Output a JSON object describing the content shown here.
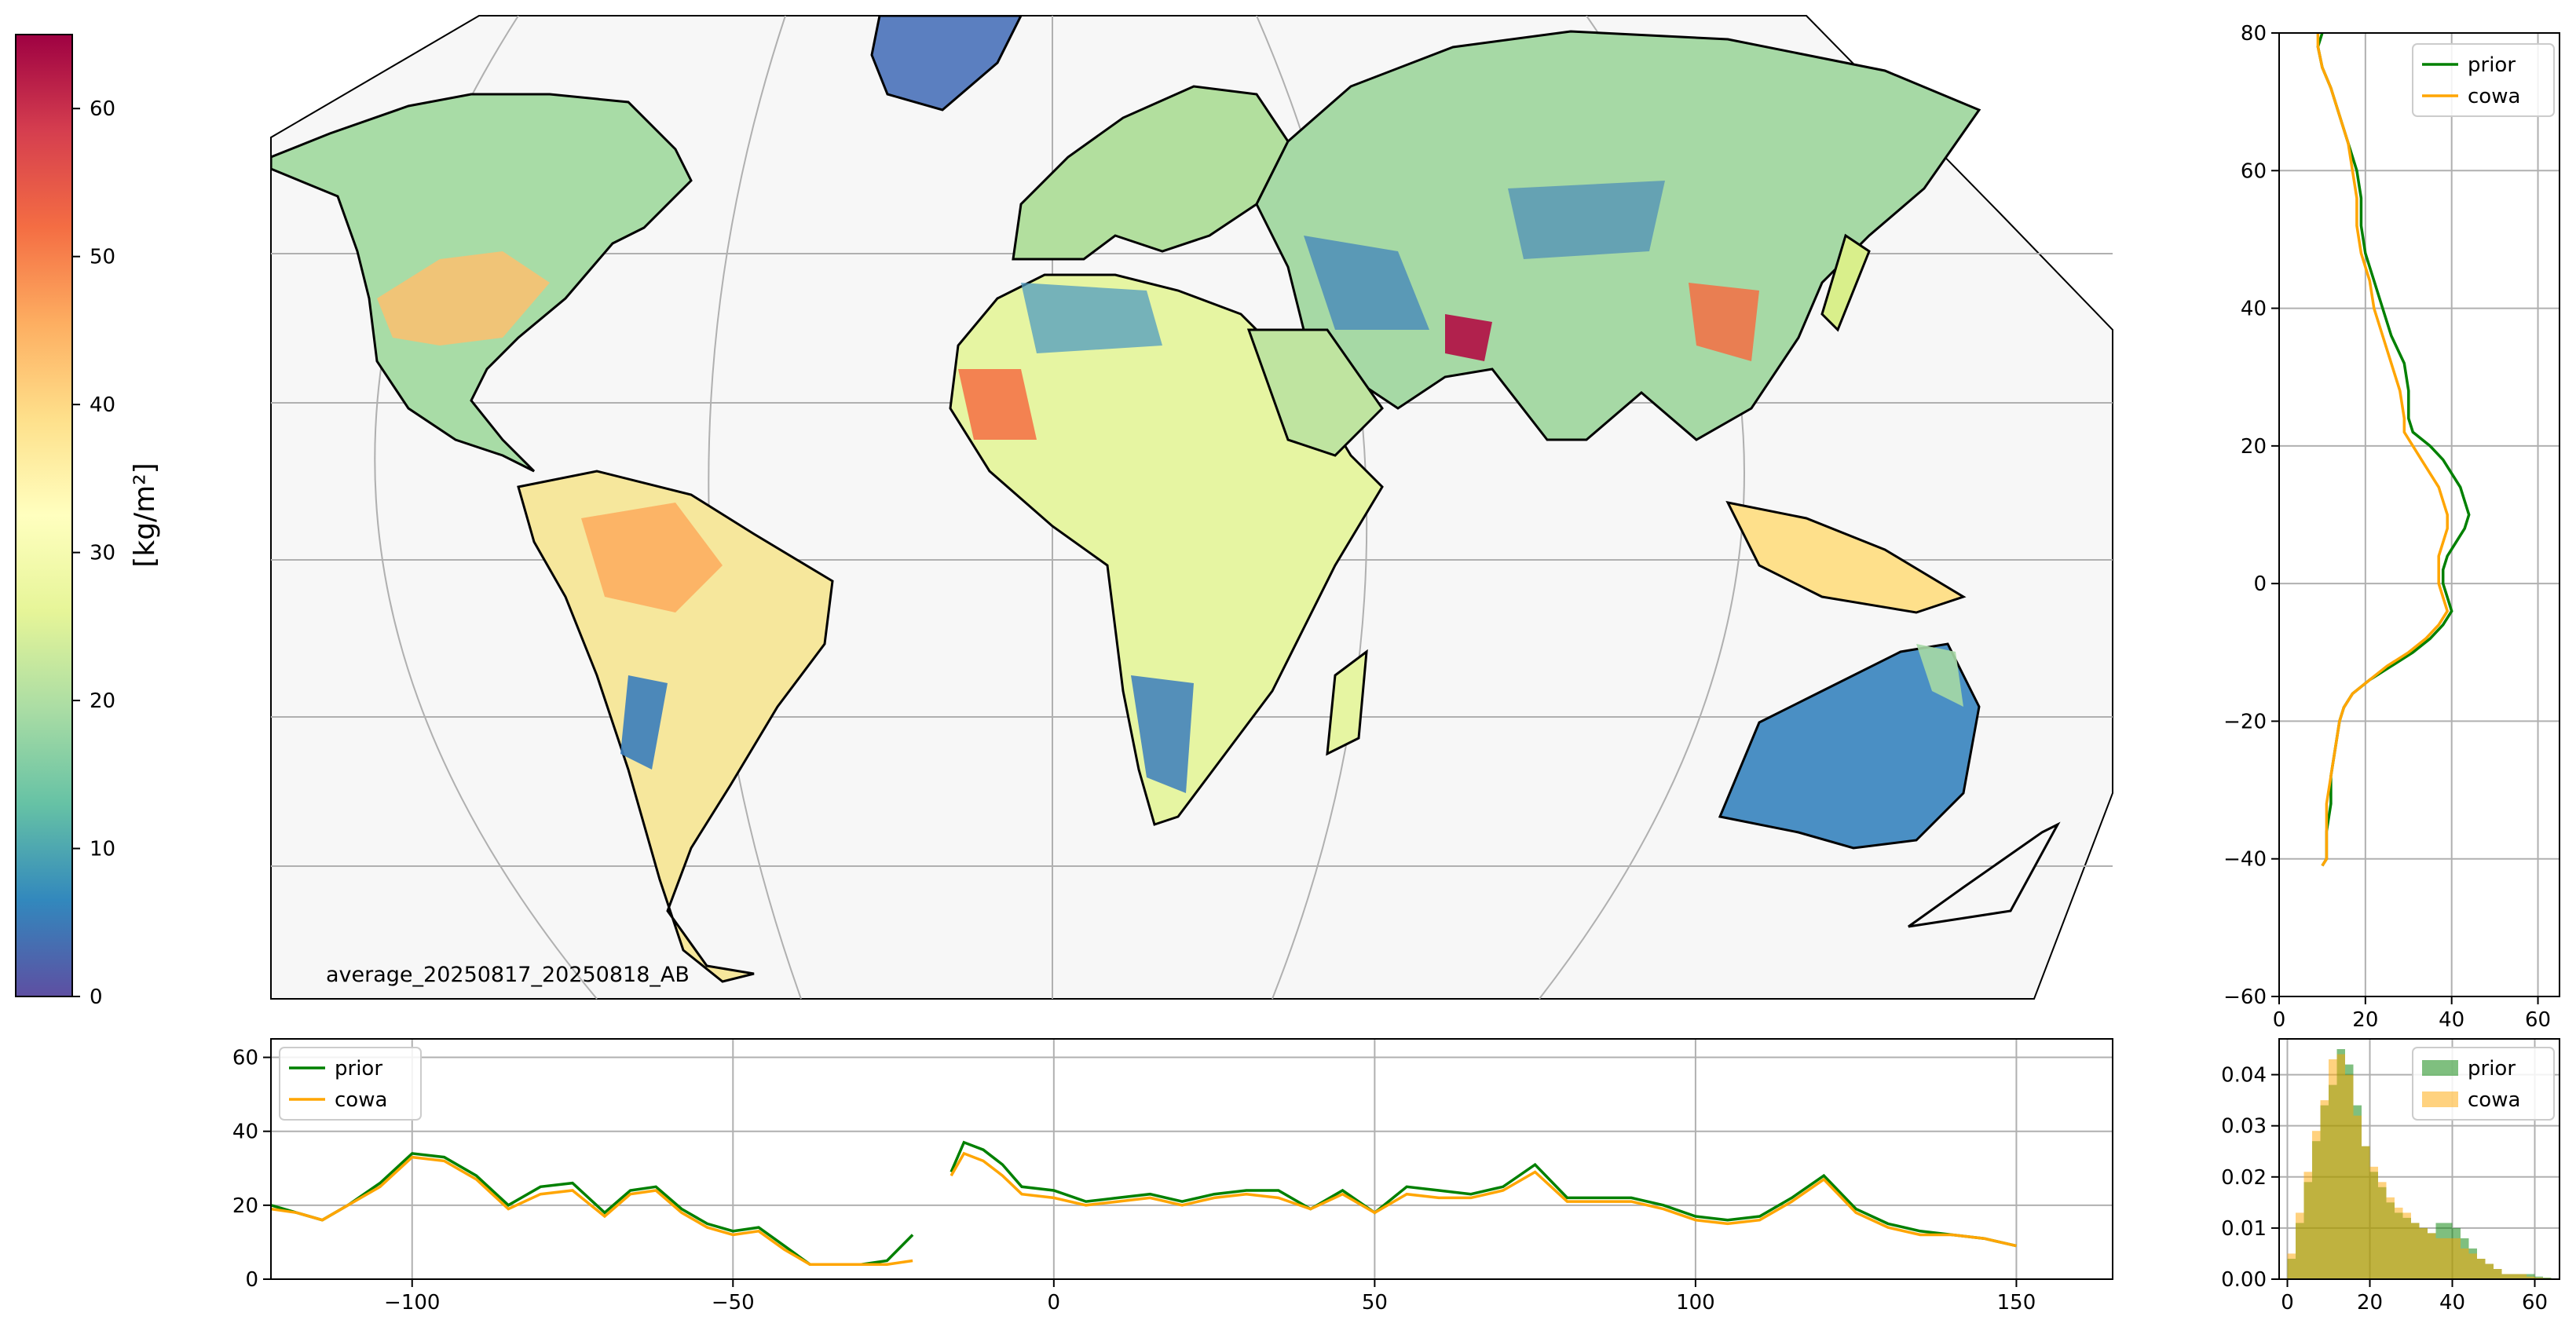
{
  "colors": {
    "prior": "#008000",
    "cowa": "#ffa500",
    "raw": "#9ecae1",
    "grid": "#b0b0b0",
    "colormap": [
      "#5e4fa2",
      "#3288bd",
      "#66c2a5",
      "#abdda4",
      "#e6f598",
      "#ffffbf",
      "#fee08b",
      "#fdae61",
      "#f46d43",
      "#d53e4f",
      "#9e0142"
    ]
  },
  "colorbar": {
    "label": "[kg/m²]",
    "ticks": [
      "0",
      "10",
      "20",
      "30",
      "40",
      "50",
      "60"
    ],
    "range": [
      0,
      65
    ]
  },
  "map": {
    "label": "average_20250817_20250818_AB",
    "projection": "robinson-like (curved meridians)",
    "background": "#f7f7f7"
  },
  "chart_data": [
    {
      "id": "latitude-profile",
      "type": "line",
      "xlim": [
        0,
        65
      ],
      "ylim": [
        -60,
        80
      ],
      "xticks": [
        "0",
        "20",
        "40",
        "60"
      ],
      "yticks": [
        "−60",
        "−40",
        "−20",
        "0",
        "20",
        "40",
        "60",
        "80"
      ],
      "grid": true,
      "legend": "top-right",
      "legend_entries": [
        "prior",
        "cowa"
      ],
      "series": [
        {
          "name": "prior",
          "lat": [
            80,
            78,
            75,
            72,
            68,
            64,
            60,
            56,
            52,
            48,
            44,
            40,
            36,
            32,
            28,
            24,
            22,
            20,
            18,
            16,
            14,
            12,
            10,
            8,
            6,
            4,
            2,
            0,
            -2,
            -4,
            -6,
            -8,
            -10,
            -12,
            -14,
            -16,
            -18,
            -20,
            -24,
            -28,
            -32,
            -36,
            -40,
            -41
          ],
          "value": [
            10,
            9,
            10,
            12,
            14,
            16,
            18,
            19,
            19,
            20,
            22,
            24,
            26,
            29,
            30,
            30,
            31,
            35,
            38,
            40,
            42,
            43,
            44,
            43,
            41,
            39,
            38,
            38,
            39,
            40,
            38,
            35,
            31,
            26,
            21,
            17,
            15,
            14,
            13,
            12,
            12,
            11,
            11,
            10
          ]
        },
        {
          "name": "cowa",
          "lat": [
            80,
            78,
            75,
            72,
            68,
            64,
            60,
            56,
            52,
            48,
            44,
            40,
            36,
            32,
            28,
            24,
            22,
            20,
            18,
            16,
            14,
            12,
            10,
            8,
            6,
            4,
            2,
            0,
            -2,
            -4,
            -6,
            -8,
            -10,
            -12,
            -14,
            -16,
            -18,
            -20,
            -24,
            -28,
            -32,
            -36,
            -40,
            -41
          ],
          "value": [
            9,
            9,
            10,
            12,
            14,
            16,
            17,
            18,
            18,
            19,
            21,
            22,
            24,
            26,
            28,
            29,
            29,
            31,
            33,
            35,
            37,
            38,
            39,
            39,
            38,
            37,
            37,
            37,
            38,
            39,
            37,
            34,
            30,
            25,
            21,
            17,
            15,
            14,
            13,
            12,
            11,
            11,
            11,
            10
          ]
        }
      ]
    },
    {
      "id": "longitude-profile",
      "type": "line",
      "xlim": [
        -122,
        165
      ],
      "ylim": [
        0,
        65
      ],
      "xticks": [
        "−100",
        "−50",
        "0",
        "50",
        "100",
        "150"
      ],
      "yticks": [
        "0",
        "20",
        "40",
        "60"
      ],
      "grid": true,
      "legend": "top-left",
      "legend_entries": [
        "prior",
        "cowa"
      ],
      "series": [
        {
          "name": "prior",
          "segments": [
            {
              "lon": [
                -122,
                -118,
                -114,
                -110,
                -105,
                -100,
                -95,
                -90,
                -85,
                -80,
                -75,
                -70,
                -66,
                -62,
                -58,
                -54,
                -50,
                -46,
                -42,
                -38,
                -34,
                -30,
                -26,
                -22
              ],
              "value": [
                20,
                18,
                16,
                20,
                26,
                34,
                33,
                28,
                20,
                25,
                26,
                18,
                24,
                25,
                19,
                15,
                13,
                14,
                9,
                4,
                4,
                4,
                5,
                12
              ]
            },
            {
              "lon": [
                -16,
                -14,
                -11,
                -8,
                -5,
                0,
                5,
                10,
                15,
                20,
                25,
                30,
                35,
                40,
                45,
                50,
                55,
                60,
                65,
                70,
                75,
                80,
                85,
                90,
                95,
                100,
                105,
                110,
                115,
                120,
                125,
                130,
                135,
                140,
                145,
                150
              ],
              "value": [
                29,
                37,
                35,
                31,
                25,
                24,
                21,
                22,
                23,
                21,
                23,
                24,
                24,
                19,
                24,
                18,
                25,
                24,
                23,
                25,
                31,
                22,
                22,
                22,
                20,
                17,
                16,
                17,
                22,
                28,
                19,
                15,
                13,
                12,
                11,
                9
              ]
            }
          ]
        },
        {
          "name": "cowa",
          "segments": [
            {
              "lon": [
                -122,
                -118,
                -114,
                -110,
                -105,
                -100,
                -95,
                -90,
                -85,
                -80,
                -75,
                -70,
                -66,
                -62,
                -58,
                -54,
                -50,
                -46,
                -42,
                -38,
                -34,
                -30,
                -26,
                -22
              ],
              "value": [
                19,
                18,
                16,
                20,
                25,
                33,
                32,
                27,
                19,
                23,
                24,
                17,
                23,
                24,
                18,
                14,
                12,
                13,
                8,
                4,
                4,
                4,
                4,
                5
              ]
            },
            {
              "lon": [
                -16,
                -14,
                -11,
                -8,
                -5,
                0,
                5,
                10,
                15,
                20,
                25,
                30,
                35,
                40,
                45,
                50,
                55,
                60,
                65,
                70,
                75,
                80,
                85,
                90,
                95,
                100,
                105,
                110,
                115,
                120,
                125,
                130,
                135,
                140,
                145,
                150
              ],
              "value": [
                28,
                34,
                32,
                28,
                23,
                22,
                20,
                21,
                22,
                20,
                22,
                23,
                22,
                19,
                23,
                18,
                23,
                22,
                22,
                24,
                29,
                21,
                21,
                21,
                19,
                16,
                15,
                16,
                21,
                27,
                18,
                14,
                12,
                12,
                11,
                9
              ]
            }
          ]
        }
      ]
    },
    {
      "id": "histogram",
      "type": "bar",
      "xlim": [
        -2,
        66
      ],
      "ylim": [
        0,
        0.047
      ],
      "xticks": [
        "0",
        "20",
        "40",
        "60"
      ],
      "yticks": [
        "0.00",
        "0.01",
        "0.02",
        "0.03",
        "0.04"
      ],
      "grid": true,
      "legend": "top-right",
      "legend_entries": [
        "prior",
        "cowa"
      ],
      "bin_start": 0,
      "bin_width": 2,
      "series": [
        {
          "name": "prior",
          "values": [
            0.004,
            0.011,
            0.019,
            0.027,
            0.034,
            0.038,
            0.045,
            0.042,
            0.034,
            0.026,
            0.021,
            0.018,
            0.015,
            0.013,
            0.012,
            0.011,
            0.01,
            0.009,
            0.011,
            0.011,
            0.01,
            0.008,
            0.006,
            0.004,
            0.003,
            0.002,
            0.001,
            0.001,
            0.001,
            0.001,
            0.0005,
            0.0003
          ]
        },
        {
          "name": "cowa",
          "values": [
            0.005,
            0.013,
            0.021,
            0.029,
            0.035,
            0.043,
            0.044,
            0.04,
            0.032,
            0.026,
            0.022,
            0.019,
            0.016,
            0.014,
            0.013,
            0.011,
            0.01,
            0.009,
            0.008,
            0.008,
            0.008,
            0.006,
            0.005,
            0.004,
            0.003,
            0.002,
            0.001,
            0.001,
            0.001,
            0.0005,
            0.0003,
            0.0002
          ]
        }
      ]
    }
  ]
}
